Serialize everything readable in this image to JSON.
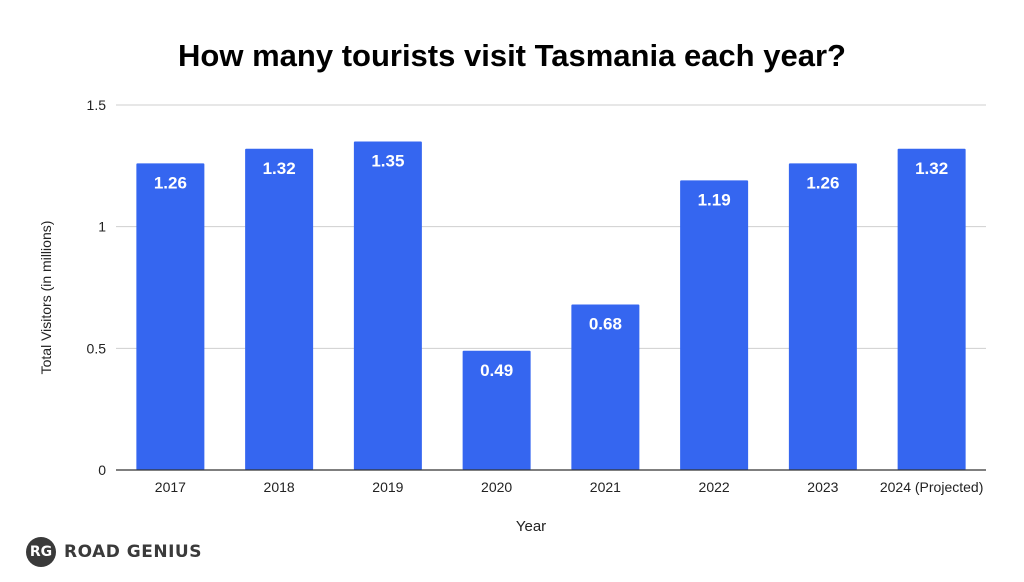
{
  "chart_data": {
    "type": "bar",
    "title": "How many tourists visit Tasmania each year?",
    "xlabel": "Year",
    "ylabel": "Total Visitors (in millions)",
    "categories": [
      "2017",
      "2018",
      "2019",
      "2020",
      "2021",
      "2022",
      "2023",
      "2024 (Projected)"
    ],
    "values": [
      1.26,
      1.32,
      1.35,
      0.49,
      0.68,
      1.19,
      1.26,
      1.32
    ],
    "value_labels": [
      "1.26",
      "1.32",
      "1.35",
      "0.49",
      "0.68",
      "1.19",
      "1.26",
      "1.32"
    ],
    "ylim": [
      0,
      1.5
    ],
    "yticks": [
      0,
      0.5,
      1,
      1.5
    ],
    "ytick_labels": [
      "0",
      "0.5",
      "1",
      "1.5"
    ],
    "grid": true,
    "legend": "none",
    "bar_color": "#3566f0"
  },
  "logo": {
    "badge": "RG",
    "text": "ROAD GENIUS"
  }
}
